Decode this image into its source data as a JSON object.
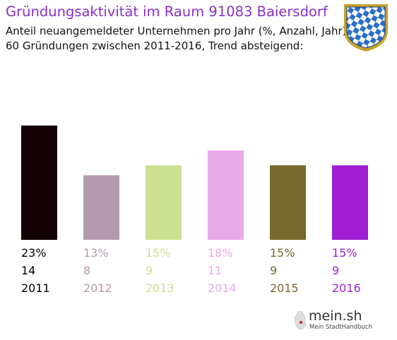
{
  "header": {
    "title": "Gründungsaktivität im Raum 91083 Baiersdorf",
    "subtitle_line1": "Anteil neuangemeldeter Unternehmen pro Jahr (%, Anzahl, Jahr)",
    "subtitle_line2": "60 Gründungen zwischen 2011-2016, Trend absteigend:"
  },
  "crest": {
    "icon": "bavarian-crest-icon",
    "colors": {
      "blue": "#2a6fc9",
      "white": "#ffffff",
      "gold": "#c8a227"
    }
  },
  "logo": {
    "name": "mein.sh",
    "tagline": "Mein StadtHandbuch"
  },
  "chart_data": {
    "type": "bar",
    "categories": [
      "2011",
      "2012",
      "2013",
      "2014",
      "2015",
      "2016"
    ],
    "values": [
      23,
      13,
      15,
      18,
      15,
      15
    ],
    "counts": [
      14,
      8,
      9,
      11,
      9,
      9
    ],
    "percent_labels": [
      "23%",
      "13%",
      "15%",
      "18%",
      "15%",
      "15%"
    ],
    "count_labels": [
      "14",
      "8",
      "9",
      "11",
      "9",
      "9"
    ],
    "colors": [
      "#150005",
      "#b39aad",
      "#cde092",
      "#e9a9e9",
      "#766a2e",
      "#a01fd2"
    ],
    "label_colors": [
      "#000000",
      "#b39aad",
      "#cde092",
      "#e9a9e9",
      "#766a2e",
      "#a01fd2"
    ],
    "ylim": [
      0,
      23
    ],
    "grid": false,
    "legend": "none"
  }
}
